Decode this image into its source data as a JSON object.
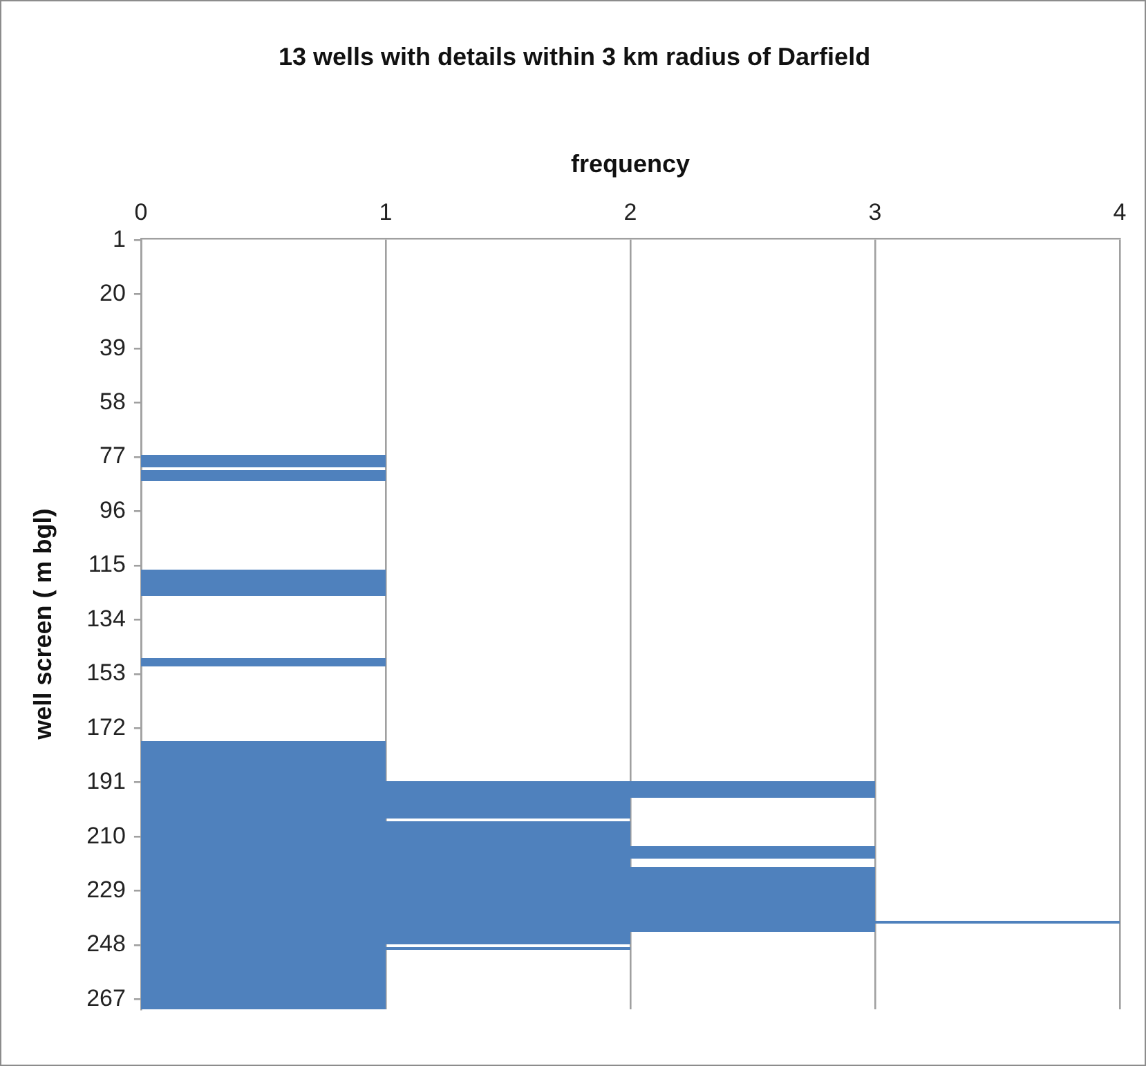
{
  "chart_data": {
    "type": "histogram",
    "orientation": "horizontal",
    "title": "13 wells with details within 3 km radius of Darfield",
    "xlabel": "frequency",
    "ylabel": "well screen ( m bgl)",
    "bins": [
      76.5,
      80.5,
      81.5,
      85.5,
      116.5,
      125.5,
      147.5,
      150.5,
      176.5,
      190.5,
      196.5,
      203.5,
      204.5,
      213.5,
      217.5,
      220.5,
      239.5,
      240.5,
      243.5,
      247.5,
      248.5,
      249.5,
      270.5
    ],
    "values": [
      1,
      0,
      1,
      0,
      1,
      0,
      1,
      0,
      1,
      3,
      2,
      1,
      2,
      3,
      2,
      3,
      4,
      3,
      2,
      1,
      2,
      1
    ],
    "color": "#4f81bd",
    "xlim": [
      0,
      4
    ],
    "xticks": [
      0,
      1,
      2,
      3,
      4
    ],
    "ylim": [
      270.5,
      0.5
    ],
    "yticks": [
      1,
      20,
      39,
      58,
      77,
      96,
      115,
      134,
      153,
      172,
      191,
      210,
      229,
      248,
      267
    ],
    "grid": "x"
  }
}
